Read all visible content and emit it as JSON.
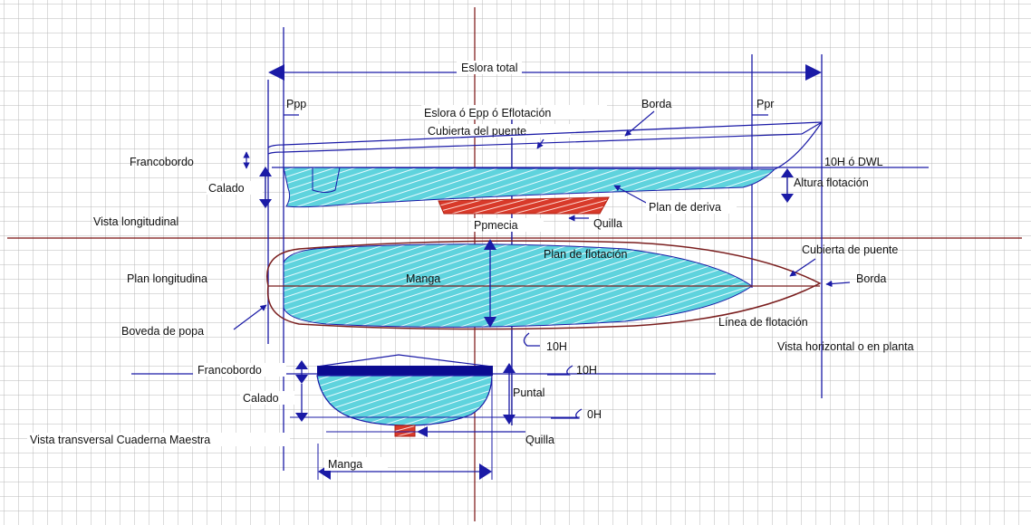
{
  "labels": {
    "eslora_total": "Eslora total",
    "ppp": "Ppp",
    "ppr": "Ppr",
    "eslora_epp": "Eslora ó Epp ó Eflotación",
    "borda_top": "Borda",
    "cubierta_puente_top": "Cubierta del puente",
    "francobordo_top": "Francobordo",
    "dwl": "10H ó DWL",
    "calado_top": "Calado",
    "altura_flotacion": "Altura flotación",
    "plan_deriva": "Plan de deriva",
    "vista_longitudinal": "Vista longitudinal",
    "ppmecia": "Ppmecia",
    "quilla_top": "Quilla",
    "plan_flotacion": "Plan de flotación",
    "cubierta_puente_mid": "Cubierta de puente",
    "plan_longitudinal": "Plan longitudina",
    "manga_mid": "Manga",
    "borda_mid": "Borda",
    "boveda_popa": "Boveda de popa",
    "linea_flotacion": "Línea de flotación",
    "wl_10h_mid": "10H",
    "vista_horizontal": "Vista horizontal o en planta",
    "francobordo_bottom": "Francobordo",
    "wl_10h_bottom": "10H",
    "puntal": "Puntal",
    "calado_bottom": "Calado",
    "wl_0h": "0H",
    "vista_transversal": "Vista transversal Cuaderna Maestra",
    "quilla_bottom": "Quilla",
    "manga_bottom": "Manga"
  },
  "colors": {
    "grid": "#b8b8b8",
    "dimension_line": "#1a1aa6",
    "waterline_fill": "#5fd3dd",
    "hatch": "#e8fbff",
    "keel_red": "#d83a2a",
    "hull_outline": "#7a1e1e",
    "deck": "#0b0b90",
    "axis": "#7a1010"
  }
}
